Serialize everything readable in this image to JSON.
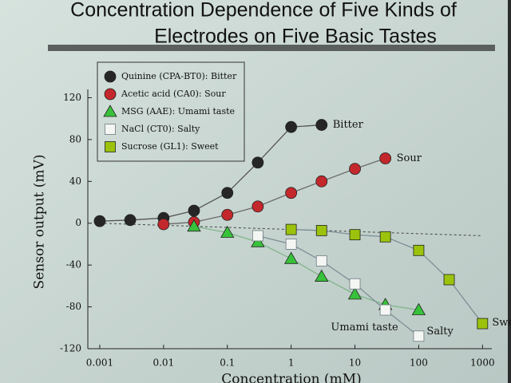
{
  "chart_data": {
    "type": "line",
    "title": [
      "Concentration Dependence of Five Kinds of",
      "Electrodes on Five Basic Tastes"
    ],
    "x_label": "Concentration (mM)",
    "y_label": "Sensor output (mV)",
    "log_x": true,
    "xlim": [
      0.00065,
      1400
    ],
    "xticks": [
      0.001,
      0.01,
      0.1,
      1,
      10,
      100,
      1000
    ],
    "ylim": [
      -120,
      128
    ],
    "yticks": [
      120,
      80,
      40,
      0,
      -40,
      -80,
      -120
    ],
    "reference_line": {
      "x": [
        0.001,
        1000
      ],
      "y": [
        0,
        -12
      ]
    },
    "series": [
      {
        "name": "Quinine (CPA-BT0): Bitter",
        "end_label": "Bitter",
        "marker": "circle",
        "color": "#262626",
        "line_color": "#555555",
        "x": [
          0.001,
          0.003,
          0.01,
          0.03,
          0.1,
          0.3,
          1,
          3
        ],
        "values": [
          2,
          3,
          5,
          12,
          29,
          58,
          92,
          94
        ]
      },
      {
        "name": "Acetic acid (CA0): Sour",
        "end_label": "Sour",
        "marker": "circle",
        "color": "#c3282c",
        "line_color": "#6a6a6a",
        "x": [
          0.01,
          0.03,
          0.1,
          0.3,
          1,
          3,
          10,
          30
        ],
        "values": [
          -1,
          1,
          8,
          16,
          29,
          40,
          52,
          62
        ]
      },
      {
        "name": "MSG (AAE): Umami taste",
        "end_label": "Umami taste",
        "marker": "triangle",
        "color": "#38c23a",
        "line_color": "#7fb58a",
        "x": [
          0.03,
          0.1,
          0.3,
          1,
          3,
          10,
          30,
          100
        ],
        "values": [
          -3,
          -9,
          -18,
          -34,
          -51,
          -68,
          -78,
          -83
        ]
      },
      {
        "name": "NaCl (CT0): Salty",
        "end_label": "Salty",
        "marker": "open-square",
        "color": "#f4f6f4",
        "line_color": "#7d8f96",
        "x": [
          0.3,
          1,
          3,
          10,
          30,
          100
        ],
        "values": [
          -12,
          -20,
          -36,
          -58,
          -83,
          -108
        ]
      },
      {
        "name": "Sucrose (GL1): Sweet",
        "end_label": "Sweet",
        "marker": "square",
        "color": "#9bc30c",
        "line_color": "#7d8f96",
        "x": [
          1,
          3,
          10,
          30,
          100,
          300,
          1000
        ],
        "values": [
          -6,
          -7,
          -11,
          -13,
          -26,
          -54,
          -96
        ]
      }
    ]
  }
}
